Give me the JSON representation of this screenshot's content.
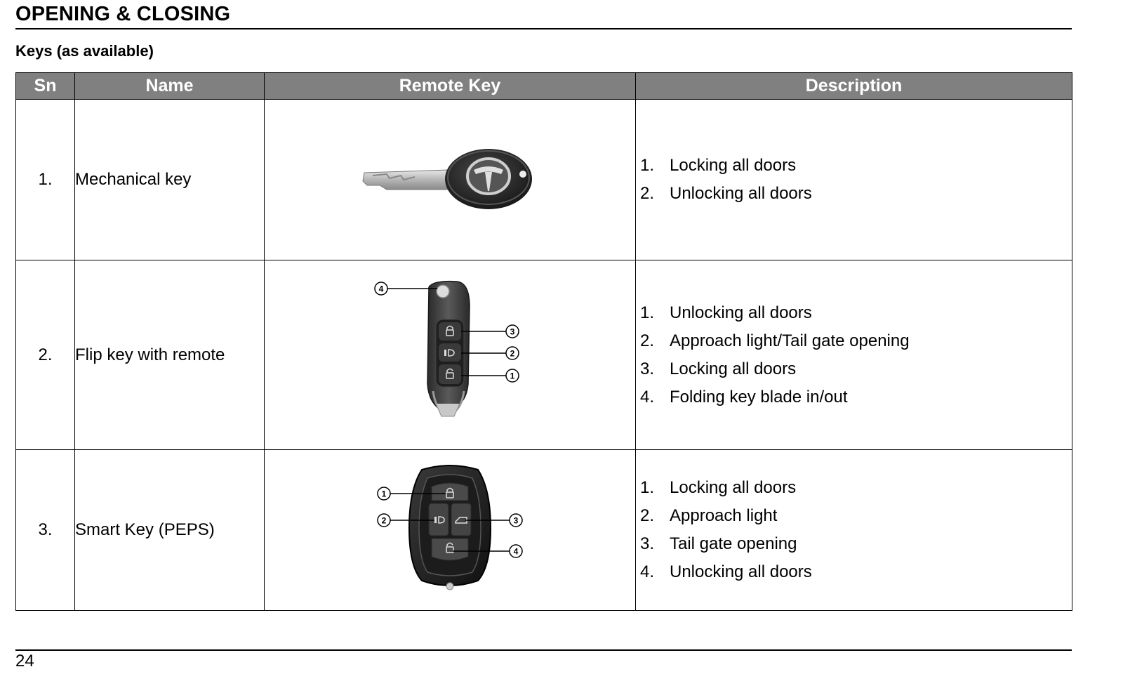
{
  "page": {
    "section_heading": "OPENING & CLOSING",
    "subheading": "Keys (as available)",
    "page_number": "24"
  },
  "table": {
    "headers": [
      "Sn",
      "Name",
      "Remote Key",
      "Description"
    ],
    "rows": [
      {
        "sn": "1.",
        "name": "Mechanical key",
        "image": "mechanical-key-image",
        "description": [
          {
            "num": "1.",
            "text": "Locking all doors"
          },
          {
            "num": "2.",
            "text": "Unlocking all doors"
          }
        ]
      },
      {
        "sn": "2.",
        "name": "Flip key with remote",
        "image": "flip-key-remote-image",
        "callouts": [
          "4",
          "3",
          "2",
          "1"
        ],
        "description": [
          {
            "num": "1.",
            "text": "Unlocking all doors"
          },
          {
            "num": "2.",
            "text": "Approach light/Tail gate opening"
          },
          {
            "num": "3.",
            "text": "Locking all doors"
          },
          {
            "num": "4.",
            "text": "Folding key blade in/out"
          }
        ]
      },
      {
        "sn": "3.",
        "name": "Smart Key (PEPS)",
        "image": "smart-key-image",
        "callouts": [
          "1",
          "2",
          "3",
          "4"
        ],
        "description": [
          {
            "num": "1.",
            "text": "Locking all doors"
          },
          {
            "num": "2.",
            "text": "Approach light"
          },
          {
            "num": "3.",
            "text": "Tail gate opening"
          },
          {
            "num": "4.",
            "text": "Unlocking all doors"
          }
        ]
      }
    ]
  },
  "colors": {
    "header_background": "#808080",
    "header_text": "#ffffff",
    "rule": "#000000"
  }
}
